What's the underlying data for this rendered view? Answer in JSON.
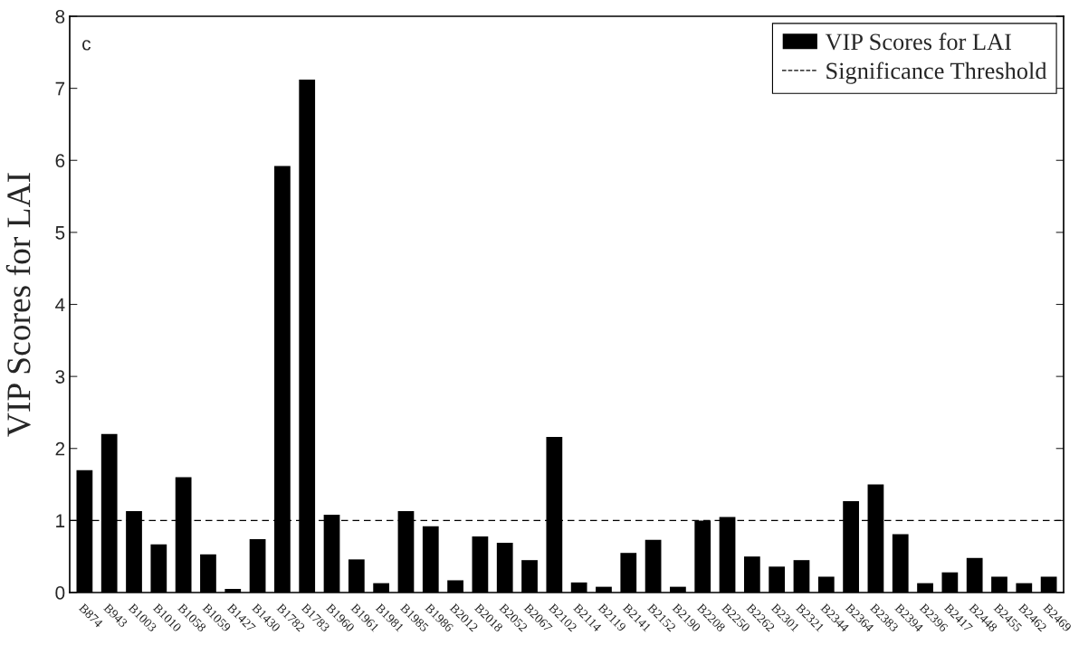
{
  "chart_data": {
    "type": "bar",
    "ylabel": "VIP Scores for LAI",
    "annotations": [
      "c"
    ],
    "categories": [
      "B874",
      "B943",
      "B1003",
      "B1010",
      "B1058",
      "B1059",
      "B1427",
      "B1430",
      "B1782",
      "B1783",
      "B1960",
      "B1961",
      "B1981",
      "B1985",
      "B1986",
      "B2012",
      "B2018",
      "B2052",
      "B2067",
      "B2102",
      "B2114",
      "B2119",
      "B2141",
      "B2152",
      "B2190",
      "B2208",
      "B2250",
      "B2262",
      "B2301",
      "B2321",
      "B2344",
      "B2364",
      "B2383",
      "B2394",
      "B2396",
      "B2417",
      "B2448",
      "B2455",
      "B2462",
      "B2469"
    ],
    "series": [
      {
        "name": "VIP Scores for LAI",
        "color": "#000000",
        "values": [
          1.7,
          2.2,
          1.13,
          0.67,
          1.6,
          0.53,
          0.05,
          0.74,
          5.92,
          7.12,
          1.08,
          0.46,
          0.13,
          1.13,
          0.92,
          0.17,
          0.78,
          0.69,
          0.45,
          2.16,
          0.14,
          0.08,
          0.55,
          0.73,
          0.08,
          1.0,
          1.05,
          0.5,
          0.36,
          0.45,
          0.22,
          1.27,
          1.5,
          0.81,
          0.13,
          0.28,
          0.48,
          0.22,
          0.13,
          0.22
        ]
      }
    ],
    "ref_lines": [
      {
        "axis": "y",
        "value": 1,
        "label": "Significance Threshold",
        "color": "#000000",
        "line_style": "dashed"
      }
    ],
    "ylim": [
      0,
      8
    ],
    "yticks": [
      0,
      1,
      2,
      3,
      4,
      5,
      6,
      7,
      8
    ],
    "grid": false,
    "legend": "top right"
  }
}
